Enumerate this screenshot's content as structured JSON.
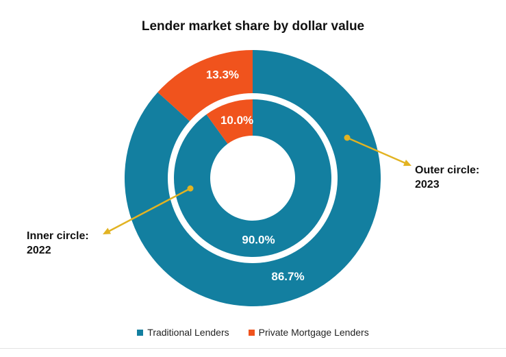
{
  "chart_data": {
    "type": "pie",
    "title": "Lender market share by dollar value",
    "categories": [
      "Traditional Lenders",
      "Private Mortgage Lenders"
    ],
    "colors": [
      "#137fa0",
      "#f0531d"
    ],
    "series": [
      {
        "name": "2022",
        "ring": "inner",
        "values": [
          90.0,
          10.0
        ],
        "labels": [
          "90.0%",
          "10.0%"
        ]
      },
      {
        "name": "2023",
        "ring": "outer",
        "values": [
          86.7,
          13.3
        ],
        "labels": [
          "86.7%",
          "13.3%"
        ]
      }
    ],
    "annotations": [
      {
        "line1": "Inner circle:",
        "line2": "2022"
      },
      {
        "line1": "Outer circle:",
        "line2": "2023"
      }
    ],
    "annotation_color": "#e2b322",
    "legend_position": "bottom"
  }
}
